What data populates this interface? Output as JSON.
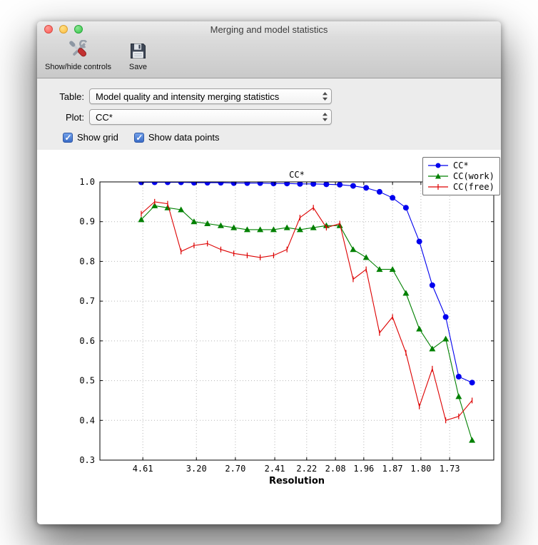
{
  "window": {
    "title": "Merging and model statistics"
  },
  "toolbar": {
    "show_hide_label": "Show/hide controls",
    "save_label": "Save"
  },
  "controls": {
    "table_label": "Table:",
    "table_value": "Model quality and intensity merging statistics",
    "plot_label": "Plot:",
    "plot_value": "CC*",
    "show_grid_label": "Show grid",
    "show_grid_checked": true,
    "show_data_points_label": "Show data points",
    "show_data_points_checked": true
  },
  "chart_data": {
    "type": "line",
    "title": "CC*",
    "xlabel": "Resolution",
    "ylabel": "",
    "grid": true,
    "legend_position": "upper right",
    "ylim": [
      0.3,
      1.0
    ],
    "yticks": [
      0.3,
      0.4,
      0.5,
      0.6,
      0.7,
      0.8,
      0.9,
      1.0
    ],
    "xticks": [
      {
        "label": "4.61",
        "pos": 0.109
      },
      {
        "label": "3.20",
        "pos": 0.245
      },
      {
        "label": "2.70",
        "pos": 0.344
      },
      {
        "label": "2.41",
        "pos": 0.444
      },
      {
        "label": "2.22",
        "pos": 0.525
      },
      {
        "label": "2.08",
        "pos": 0.598
      },
      {
        "label": "1.96",
        "pos": 0.67
      },
      {
        "label": "1.87",
        "pos": 0.743
      },
      {
        "label": "1.80",
        "pos": 0.815
      },
      {
        "label": "1.73",
        "pos": 0.888
      }
    ],
    "x_positions": [
      0.105,
      0.139,
      0.172,
      0.206,
      0.239,
      0.273,
      0.307,
      0.34,
      0.374,
      0.407,
      0.441,
      0.475,
      0.508,
      0.542,
      0.575,
      0.609,
      0.643,
      0.676,
      0.71,
      0.743,
      0.777,
      0.811,
      0.844,
      0.878,
      0.911,
      0.945
    ],
    "series": [
      {
        "name": "CC*",
        "color": "#0000ee",
        "marker": "circle",
        "values": [
          0.999,
          0.999,
          0.999,
          0.999,
          0.998,
          0.998,
          0.998,
          0.997,
          0.997,
          0.997,
          0.996,
          0.996,
          0.995,
          0.995,
          0.994,
          0.993,
          0.99,
          0.985,
          0.975,
          0.96,
          0.935,
          0.85,
          0.74,
          0.66,
          0.51,
          0.495
        ]
      },
      {
        "name": "CC(work)",
        "color": "#008000",
        "marker": "triangle",
        "values": [
          0.905,
          0.94,
          0.935,
          0.93,
          0.9,
          0.895,
          0.89,
          0.885,
          0.88,
          0.88,
          0.88,
          0.885,
          0.88,
          0.885,
          0.89,
          0.89,
          0.83,
          0.81,
          0.78,
          0.78,
          0.72,
          0.63,
          0.58,
          0.605,
          0.46,
          0.35
        ]
      },
      {
        "name": "CC(free)",
        "color": "#dd0000",
        "marker": "vline",
        "values": [
          0.92,
          0.95,
          0.945,
          0.825,
          0.84,
          0.845,
          0.83,
          0.82,
          0.815,
          0.81,
          0.815,
          0.83,
          0.91,
          0.935,
          0.885,
          0.895,
          0.755,
          0.78,
          0.62,
          0.66,
          0.57,
          0.435,
          0.53,
          0.4,
          0.41,
          0.45
        ]
      }
    ]
  }
}
